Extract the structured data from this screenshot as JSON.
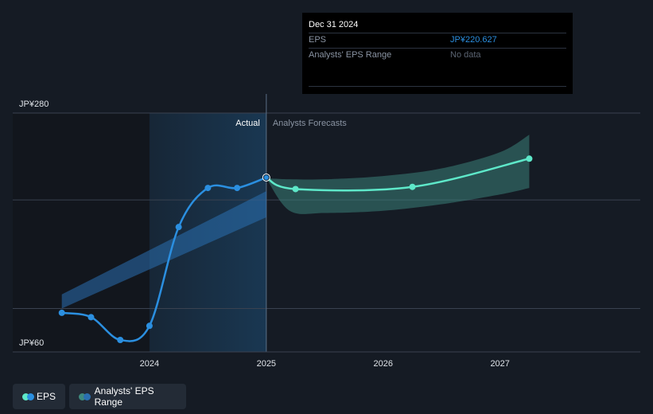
{
  "colors": {
    "actual_line": "#2b8fe0",
    "forecast_line": "#5ee8c9",
    "actual_band": "#2a6fb0",
    "forecast_band": "#3e8a7f",
    "grid": "#3a4250",
    "axis_text": "#dfe3e8",
    "muted_text": "#8a94a3"
  },
  "chart_data": {
    "type": "line",
    "title": "EPS",
    "ylabel": "",
    "xlabel": "",
    "ylim": [
      60,
      280
    ],
    "y_labels": [
      {
        "value": 280,
        "label": "JP¥280"
      },
      {
        "value": 60,
        "label": "JP¥60"
      }
    ],
    "y_gridlines": [
      280,
      200,
      100
    ],
    "x_ticks": [
      {
        "x": 2024.0,
        "label": "2024"
      },
      {
        "x": 2025.0,
        "label": "2025"
      },
      {
        "x": 2026.0,
        "label": "2026"
      },
      {
        "x": 2027.0,
        "label": "2027"
      }
    ],
    "xlim": [
      2022.83,
      2028.2
    ],
    "divider_x": 2025.0,
    "period_labels": {
      "actual": "Actual",
      "forecast": "Analysts Forecasts"
    },
    "series": [
      {
        "name": "EPS",
        "kind": "actual",
        "points": [
          {
            "x": 2023.25,
            "y": 96
          },
          {
            "x": 2023.5,
            "y": 92
          },
          {
            "x": 2023.75,
            "y": 71
          },
          {
            "x": 2024.0,
            "y": 84
          },
          {
            "x": 2024.25,
            "y": 175
          },
          {
            "x": 2024.5,
            "y": 211
          },
          {
            "x": 2024.75,
            "y": 211
          },
          {
            "x": 2025.0,
            "y": 220.627
          }
        ]
      },
      {
        "name": "EPS Forecast",
        "kind": "forecast",
        "points": [
          {
            "x": 2025.0,
            "y": 220.627
          },
          {
            "x": 2025.25,
            "y": 210
          },
          {
            "x": 2026.25,
            "y": 212
          },
          {
            "x": 2027.25,
            "y": 238
          }
        ]
      }
    ],
    "ranges": [
      {
        "name": "Analysts' EPS Range (past)",
        "x": [
          2023.25,
          2025.0
        ],
        "upper": [
          113,
          208
        ],
        "lower": [
          100,
          184
        ]
      },
      {
        "name": "Analysts' EPS Range (forecast)",
        "x": [
          2025.0,
          2025.2,
          2025.5,
          2026.0,
          2026.5,
          2027.0,
          2027.25
        ],
        "upper": [
          220,
          219,
          219,
          222,
          229,
          244,
          260
        ],
        "lower": [
          220,
          190,
          188,
          190,
          196,
          205,
          211
        ]
      }
    ],
    "legend": [
      "EPS",
      "Analysts' EPS Range"
    ],
    "legend_position": "bottom-left"
  },
  "tooltip": {
    "date": "Dec 31 2024",
    "rows": [
      {
        "label": "EPS",
        "value": "JP¥220.627"
      },
      {
        "label": "Analysts' EPS Range",
        "value": "No data"
      }
    ]
  },
  "legend": {
    "eps_label": "EPS",
    "range_label": "Analysts' EPS Range"
  }
}
